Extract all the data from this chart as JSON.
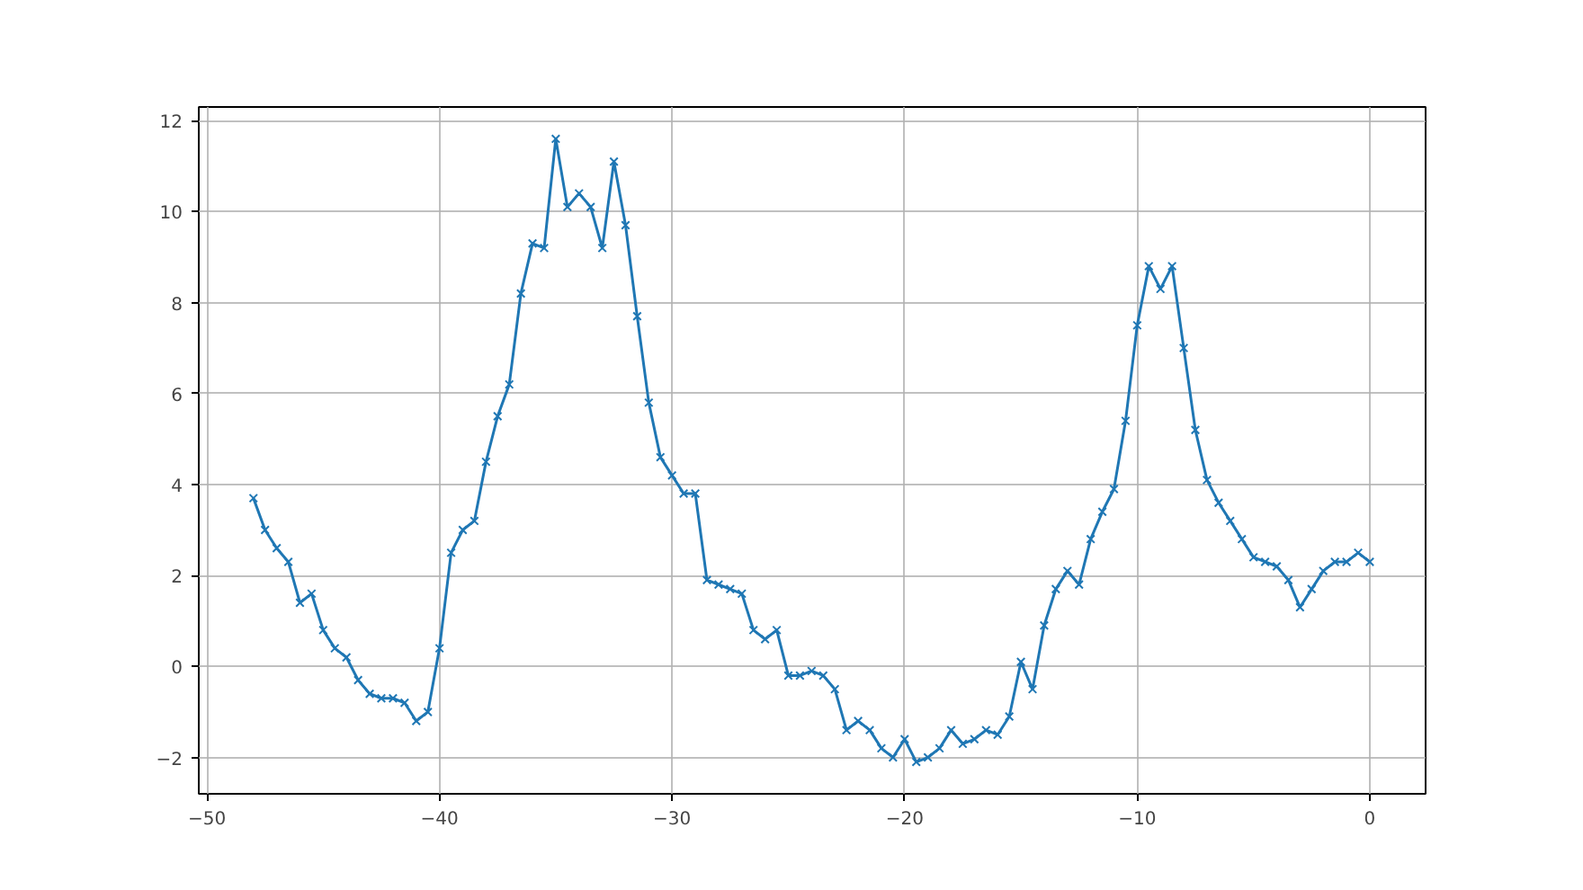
{
  "chart_data": {
    "type": "line",
    "marker": "cross",
    "grid": true,
    "x": [
      -48,
      -47.5,
      -47,
      -46.5,
      -46,
      -45.5,
      -45,
      -44.5,
      -44,
      -43.5,
      -43,
      -42.5,
      -42,
      -41.5,
      -41,
      -40.5,
      -40,
      -39.5,
      -39,
      -38.5,
      -38,
      -37.5,
      -37,
      -36.5,
      -36,
      -35.5,
      -35,
      -34.5,
      -34,
      -33.5,
      -33,
      -32.5,
      -32,
      -31.5,
      -31,
      -30.5,
      -30,
      -29.5,
      -29,
      -28.5,
      -28,
      -27.5,
      -27,
      -26.5,
      -26,
      -25.5,
      -25,
      -24.5,
      -24,
      -23.5,
      -23,
      -22.5,
      -22,
      -21.5,
      -21,
      -20.5,
      -20,
      -19.5,
      -19,
      -18.5,
      -18,
      -17.5,
      -17,
      -16.5,
      -16,
      -15.5,
      -15,
      -14.5,
      -14,
      -13.5,
      -13,
      -12.5,
      -12,
      -11.5,
      -11,
      -10.5,
      -10,
      -9.5,
      -9,
      -8.5,
      -8,
      -7.5,
      -7,
      -6.5,
      -6,
      -5.5,
      -5,
      -4.5,
      -4,
      -3.5,
      -3,
      -2.5,
      -2,
      -1.5,
      -1,
      -0.5,
      0
    ],
    "series": [
      {
        "color": "#1f77b4",
        "values": [
          3.7,
          3.0,
          2.6,
          2.3,
          1.4,
          1.6,
          0.8,
          0.4,
          0.2,
          -0.3,
          -0.6,
          -0.7,
          -0.7,
          -0.8,
          -1.2,
          -1.0,
          0.4,
          2.5,
          3.0,
          3.2,
          4.5,
          5.5,
          6.2,
          8.2,
          9.3,
          9.2,
          11.6,
          10.1,
          10.4,
          10.1,
          9.2,
          11.1,
          9.7,
          7.7,
          5.8,
          4.6,
          4.2,
          3.8,
          3.8,
          1.9,
          1.8,
          1.7,
          1.6,
          0.8,
          0.6,
          0.8,
          -0.2,
          -0.2,
          -0.1,
          -0.2,
          -0.5,
          -1.4,
          -1.2,
          -1.4,
          -1.8,
          -2.0,
          -1.6,
          -2.1,
          -2.0,
          -1.8,
          -1.4,
          -1.7,
          -1.6,
          -1.4,
          -1.5,
          -1.1,
          0.1,
          -0.5,
          0.9,
          1.7,
          2.1,
          1.8,
          2.8,
          3.4,
          3.9,
          5.4,
          7.5,
          8.8,
          8.3,
          8.8,
          7.0,
          5.2,
          4.1,
          3.6,
          3.2,
          2.8,
          2.4,
          2.3,
          2.2,
          1.9,
          1.3,
          1.7,
          2.1,
          2.3,
          2.3,
          2.5,
          2.3
        ]
      }
    ],
    "xlim": [
      -50.35,
      2.4
    ],
    "ylim": [
      -2.8,
      12.3
    ],
    "xticks": [
      -50,
      -40,
      -30,
      -20,
      -10,
      0
    ],
    "yticks": [
      -2,
      0,
      2,
      4,
      6,
      8,
      10,
      12
    ]
  }
}
